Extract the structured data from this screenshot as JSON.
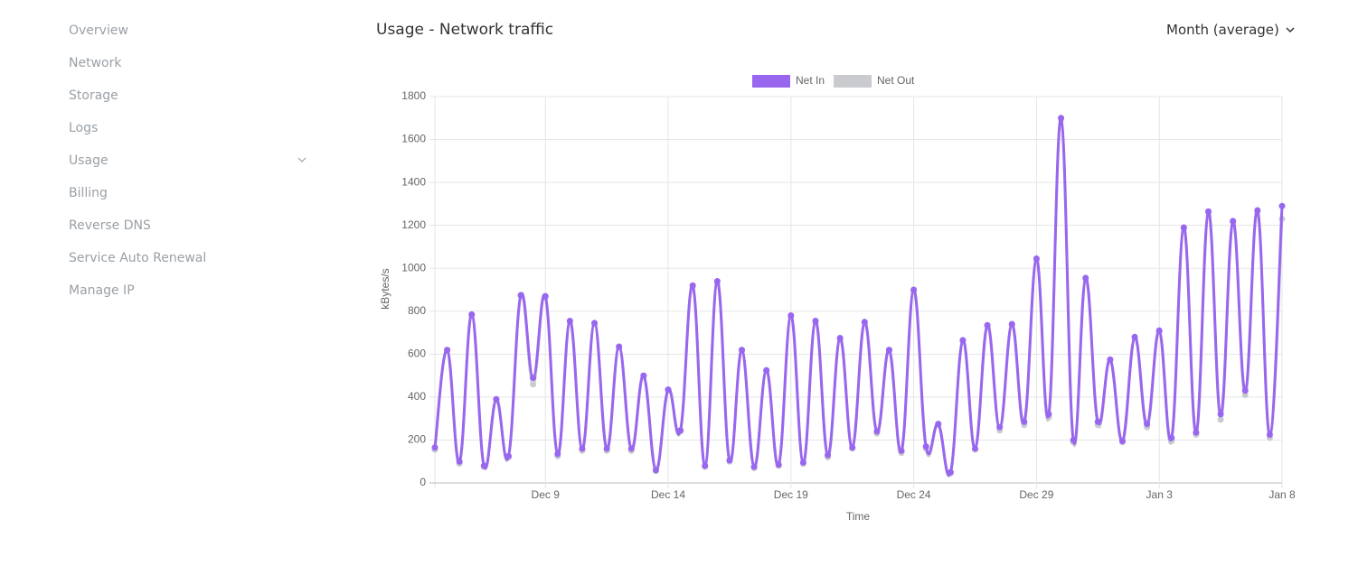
{
  "sidebar": {
    "items": [
      "Overview",
      "Network",
      "Storage",
      "Logs",
      "Usage",
      "Billing",
      "Reverse DNS",
      "Service Auto Renewal",
      "Manage IP"
    ]
  },
  "header": {
    "title": "Usage - Network traffic",
    "period": "Month (average)"
  },
  "chart_data": {
    "type": "line",
    "xlabel": "Time",
    "ylabel": "kBytes/s",
    "grid": true,
    "legend": "top",
    "x": [
      0,
      0.5,
      1,
      1.5,
      2,
      2.5,
      3,
      3.5,
      4,
      4.5,
      5,
      5.5,
      6,
      6.5,
      7,
      7.5,
      8,
      8.5,
      9,
      9.5,
      10,
      10.5,
      11,
      11.5,
      12,
      12.5,
      13,
      13.5,
      14,
      14.5,
      15,
      15.5,
      16,
      16.5,
      17,
      17.5,
      18,
      18.5,
      19,
      19.5,
      20,
      20.5,
      21,
      21.5,
      22,
      22.5,
      23,
      23.5,
      24,
      24.5,
      25,
      25.5,
      26,
      26.5,
      27,
      27.5,
      28,
      28.5,
      29,
      29.5,
      30,
      30.5,
      31,
      31.5,
      32,
      32.5,
      33,
      33.5,
      34,
      34.5
    ],
    "xlim": [
      0,
      34.5
    ],
    "xticks": [
      {
        "value": 4.5,
        "label": "Dec 9"
      },
      {
        "value": 9.5,
        "label": "Dec 14"
      },
      {
        "value": 14.5,
        "label": "Dec 19"
      },
      {
        "value": 19.5,
        "label": "Dec 24"
      },
      {
        "value": 24.5,
        "label": "Dec 29"
      },
      {
        "value": 29.5,
        "label": "Jan 3"
      },
      {
        "value": 34.5,
        "label": "Jan 8"
      }
    ],
    "ylim": [
      0,
      1800
    ],
    "yticks": [
      0,
      200,
      400,
      600,
      800,
      1000,
      1200,
      1400,
      1600,
      1800
    ],
    "series": [
      {
        "name": "Net In",
        "color": "#9966f0",
        "values": [
          165,
          620,
          100,
          785,
          80,
          390,
          125,
          875,
          490,
          870,
          135,
          755,
          160,
          745,
          160,
          635,
          160,
          500,
          60,
          435,
          245,
          920,
          80,
          940,
          105,
          620,
          75,
          525,
          85,
          780,
          95,
          755,
          130,
          675,
          165,
          750,
          240,
          620,
          150,
          900,
          170,
          275,
          50,
          665,
          160,
          735,
          260,
          740,
          285,
          1045,
          320,
          1700,
          200,
          955,
          285,
          575,
          195,
          680,
          275,
          710,
          210,
          1190,
          235,
          1265,
          320,
          1220,
          430,
          1270,
          225,
          1290
        ]
      },
      {
        "name": "Net Out",
        "color": "#c9cbcf",
        "values": [
          155,
          615,
          90,
          780,
          75,
          385,
          120,
          870,
          460,
          865,
          125,
          750,
          150,
          740,
          150,
          630,
          150,
          495,
          55,
          430,
          240,
          915,
          75,
          935,
          100,
          615,
          70,
          520,
          80,
          775,
          90,
          750,
          120,
          670,
          160,
          745,
          230,
          615,
          140,
          895,
          160,
          270,
          45,
          660,
          155,
          730,
          245,
          735,
          270,
          1040,
          305,
          1695,
          190,
          950,
          270,
          570,
          190,
          675,
          260,
          705,
          195,
          1185,
          225,
          1260,
          295,
          1215,
          410,
          1265,
          210,
          1230
        ]
      }
    ]
  }
}
